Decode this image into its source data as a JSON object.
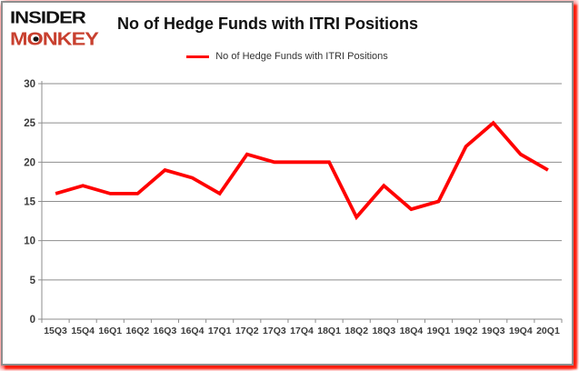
{
  "brand": {
    "line1": "INSIDER",
    "line2": "MONKEY",
    "line2_color": "#c8402f"
  },
  "header": {
    "title": "No of Hedge Funds with ITRI Positions"
  },
  "legend": {
    "label": "No of Hedge Funds with ITRI Positions",
    "line_color": "#ff0000"
  },
  "chart_data": {
    "type": "line",
    "title": "No of Hedge Funds with ITRI Positions",
    "categories": [
      "15Q3",
      "15Q4",
      "16Q1",
      "16Q2",
      "16Q3",
      "16Q4",
      "17Q1",
      "17Q2",
      "17Q3",
      "17Q4",
      "18Q1",
      "18Q2",
      "18Q3",
      "18Q4",
      "19Q1",
      "19Q2",
      "19Q3",
      "19Q4",
      "20Q1"
    ],
    "series": [
      {
        "name": "No of Hedge Funds with ITRI Positions",
        "color": "#ff0000",
        "values": [
          16,
          17,
          16,
          16,
          19,
          18,
          16,
          21,
          20,
          20,
          20,
          13,
          17,
          14,
          15,
          22,
          25,
          21,
          19
        ]
      }
    ],
    "xlabel": "",
    "ylabel": "",
    "ylim": [
      0,
      30
    ],
    "yticks": [
      0,
      5,
      10,
      15,
      20,
      25,
      30
    ],
    "grid": true,
    "gridline_color": "#8e8e8e",
    "axis_label_color": "#3b3b3b",
    "legend_position": "top-center"
  }
}
